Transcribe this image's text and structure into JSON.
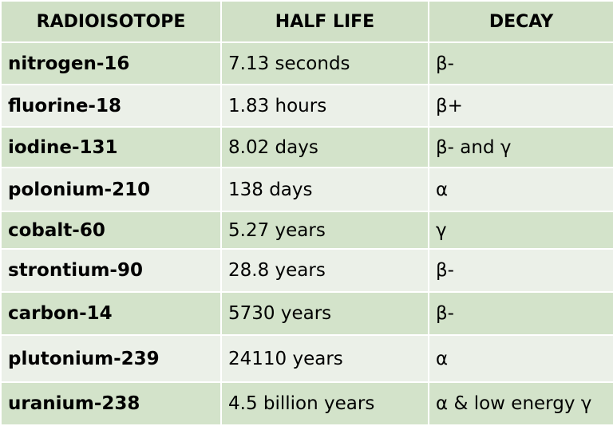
{
  "table": {
    "headers": [
      "RADIOISOTOPE",
      "HALF LIFE",
      "DECAY"
    ],
    "rows": [
      {
        "isotope": "nitrogen-16",
        "half_life": "7.13 seconds",
        "decay": "β-"
      },
      {
        "isotope": "fluorine-18",
        "half_life": "1.83 hours",
        "decay": "β+"
      },
      {
        "isotope": "iodine-131",
        "half_life": "8.02 days",
        "decay": "β- and γ"
      },
      {
        "isotope": "polonium-210",
        "half_life": "138 days",
        "decay": "α"
      },
      {
        "isotope": "cobalt-60",
        "half_life": "5.27 years",
        "decay": "γ"
      },
      {
        "isotope": "strontium-90",
        "half_life": "28.8 years",
        "decay": "β-"
      },
      {
        "isotope": "carbon-14",
        "half_life": "5730 years",
        "decay": "β-"
      },
      {
        "isotope": "plutonium-239",
        "half_life": "24110 years",
        "decay": "α"
      },
      {
        "isotope": "uranium-238",
        "half_life": "4.5 billion years",
        "decay": "α & low energy  γ"
      }
    ]
  },
  "colors": {
    "header_bg": "#d0e0c6",
    "odd_row_bg": "#d3e3ca",
    "even_row_bg": "#ebf0e8",
    "border": "#ffffff"
  }
}
